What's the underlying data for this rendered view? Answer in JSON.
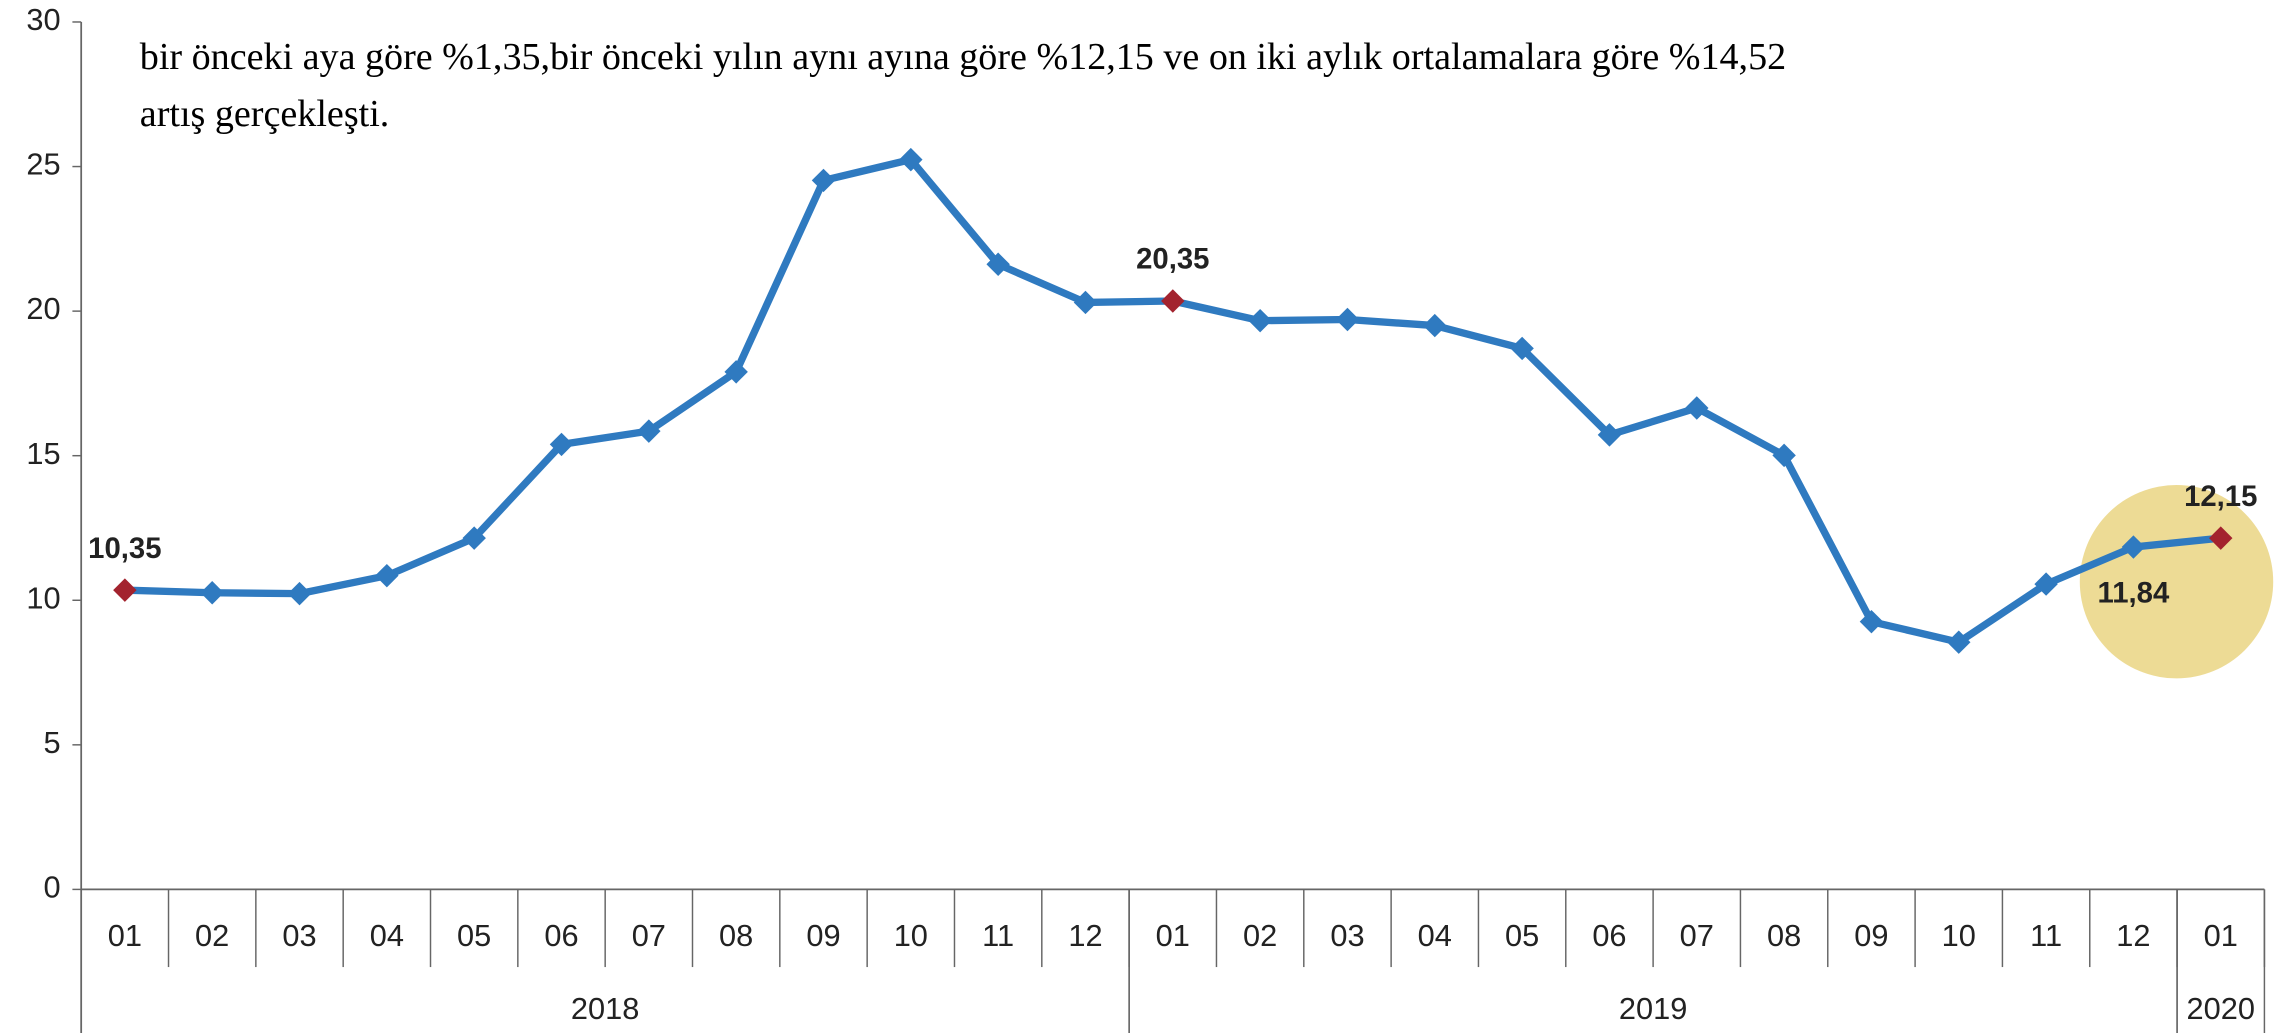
{
  "text_lines": [
    "bir önceki aya göre %1,35,bir önceki yılın aynı ayına göre %12,15 ve on iki aylık ortalamalara göre %14,52",
    "artış gerçekleşti."
  ],
  "chart_data": {
    "type": "line",
    "categories": [
      "01",
      "02",
      "03",
      "04",
      "05",
      "06",
      "07",
      "08",
      "09",
      "10",
      "11",
      "12",
      "01",
      "02",
      "03",
      "04",
      "05",
      "06",
      "07",
      "08",
      "09",
      "10",
      "11",
      "12",
      "01"
    ],
    "year_groups": [
      {
        "name": "2018",
        "count": 12
      },
      {
        "name": "2019",
        "count": 12
      },
      {
        "name": "2020",
        "count": 1
      }
    ],
    "values": [
      10.35,
      10.26,
      10.23,
      10.85,
      12.15,
      15.39,
      15.85,
      17.9,
      24.52,
      25.24,
      21.62,
      20.3,
      20.35,
      19.67,
      19.71,
      19.5,
      18.71,
      15.72,
      16.65,
      15.01,
      9.26,
      8.55,
      10.56,
      11.84,
      12.15
    ],
    "value_labels": [
      "10,35",
      null,
      null,
      null,
      null,
      null,
      null,
      null,
      null,
      null,
      null,
      null,
      "20,35",
      null,
      null,
      null,
      null,
      null,
      null,
      null,
      null,
      null,
      null,
      "11,84",
      "12,15"
    ],
    "color": "#2f7ac0",
    "highlight_color": "#a3232e",
    "highlight_points": [
      0,
      12,
      24
    ],
    "ylim": [
      0,
      30
    ],
    "yticks": [
      0,
      5,
      10,
      15,
      20,
      25,
      30
    ]
  }
}
